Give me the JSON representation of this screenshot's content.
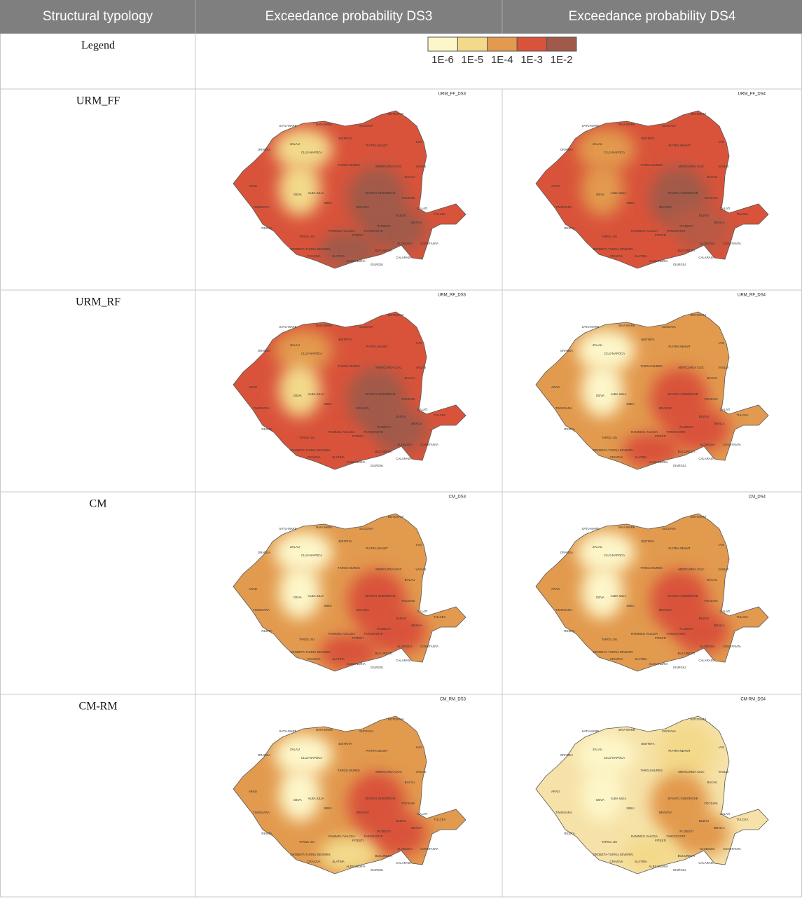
{
  "header": [
    "Structural typology",
    "Exceedance probability DS3",
    "Exceedance probability DS4"
  ],
  "legend": {
    "label": "Legend",
    "classes": [
      {
        "label": "1E-6",
        "color": "#fdf6c9"
      },
      {
        "label": "1E-5",
        "color": "#f3d98a"
      },
      {
        "label": "1E-4",
        "color": "#e29a4e"
      },
      {
        "label": "1E-3",
        "color": "#d9533a"
      },
      {
        "label": "1E-2",
        "color": "#a15a4a"
      }
    ]
  },
  "city_labels": [
    "SATU-MARE",
    "BAIA MARE",
    "BOTOSANI",
    "SUCEAVA",
    "ORADEA",
    "ZALAU",
    "BISTRITA",
    "IASI",
    "CLUJ-NAPOCA",
    "PIATRA NEAMT",
    "TARGU MURES",
    "MIERCUREA CIUC",
    "VASLUI",
    "BACAU",
    "ARAD",
    "ALBA IULIA",
    "SIBIU",
    "DEVA",
    "SFANTU GHEORGHE",
    "BRASOV",
    "FOCSANI",
    "GALATI",
    "TIMISOARA",
    "RESITA",
    "TARGU JIU",
    "RAMNICU VALCEA",
    "PITESTI",
    "TARGOVISTE",
    "PLOIESTI",
    "BUZAU",
    "BRAILA",
    "TULCEA",
    "DROBETA-TURNU SEVERIN",
    "CRAIOVA",
    "SLATINA",
    "ALEXANDRIA",
    "GIURGIU",
    "BUCURESTI",
    "SLOBOZIA",
    "CALARASI",
    "CONSTANTA"
  ],
  "rows": [
    {
      "typology": "URM_FF",
      "maps": [
        {
          "title": "URM_FF_DS3",
          "base": "#d9533a",
          "zones": [
            "#f3d98a",
            "#f3d98a",
            "#d9533a",
            "#a15a4a",
            "#a15a4a",
            "#a15a4a"
          ]
        },
        {
          "title": "URM_FF_DS4",
          "base": "#d9533a",
          "zones": [
            "#e29a4e",
            "#e29a4e",
            "#d9533a",
            "#a15a4a",
            "#b85a45",
            "#d9533a"
          ]
        }
      ]
    },
    {
      "typology": "URM_RF",
      "maps": [
        {
          "title": "URM_RF_DS3",
          "base": "#d9533a",
          "zones": [
            "#e29a4e",
            "#f3d98a",
            "#d9533a",
            "#a15a4a",
            "#a15a4a",
            "#d9533a"
          ]
        },
        {
          "title": "URM_RF_DS4",
          "base": "#e29a4e",
          "zones": [
            "#fdf6c9",
            "#fdf6c9",
            "#e29a4e",
            "#d9533a",
            "#d9533a",
            "#d9533a"
          ]
        }
      ]
    },
    {
      "typology": "CM",
      "maps": [
        {
          "title": "CM_DS3",
          "base": "#e29a4e",
          "zones": [
            "#fdf6c9",
            "#fdf6c9",
            "#e29a4e",
            "#d9533a",
            "#d9533a",
            "#d9533a"
          ]
        },
        {
          "title": "CM_DS4",
          "base": "#e29a4e",
          "zones": [
            "#fdf6c9",
            "#fdf6c9",
            "#e29a4e",
            "#d9533a",
            "#d9533a",
            "#e29a4e"
          ]
        }
      ]
    },
    {
      "typology": "CM-RM",
      "maps": [
        {
          "title": "CM_RM_DS3",
          "base": "#e29a4e",
          "zones": [
            "#fdf6c9",
            "#fdf6c9",
            "#e29a4e",
            "#d9533a",
            "#d9533a",
            "#f3d98a"
          ]
        },
        {
          "title": "CM-RM_DS4",
          "base": "#f6e2a8",
          "zones": [
            "#fdf6c9",
            "#fdf6c9",
            "#f3d98a",
            "#e29a4e",
            "#e29a4e",
            "#f3d98a"
          ]
        }
      ]
    }
  ]
}
